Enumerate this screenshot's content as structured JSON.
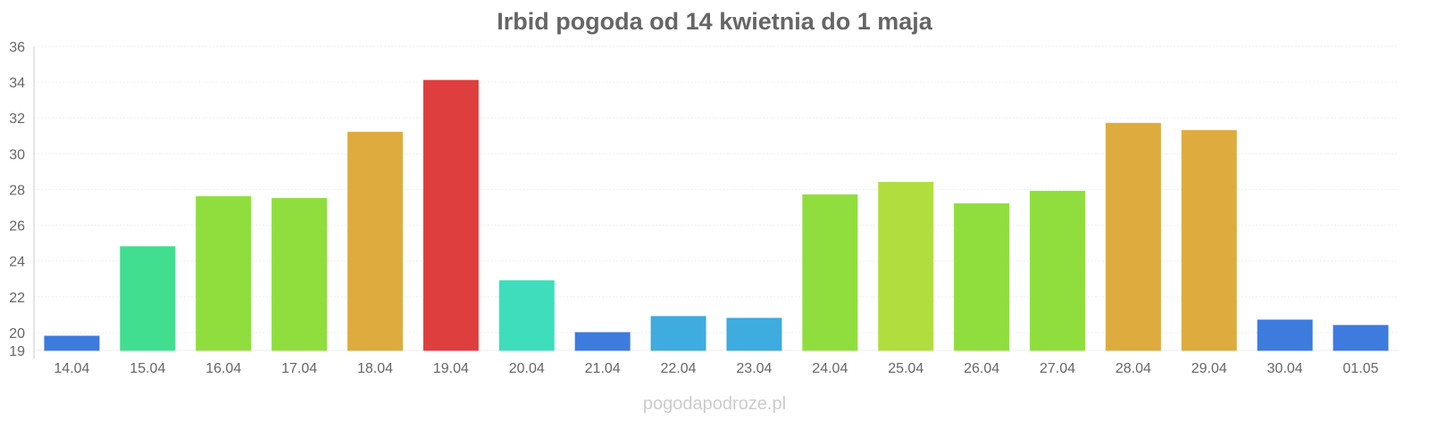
{
  "chart_data": {
    "type": "bar",
    "title": "Irbid pogoda od 14 kwietnia do 1 maja",
    "xlabel": "",
    "ylabel": "",
    "ylim": [
      19,
      36
    ],
    "yticks": [
      19,
      20,
      22,
      24,
      26,
      28,
      30,
      32,
      34,
      36
    ],
    "grid": true,
    "categories": [
      "14.04",
      "15.04",
      "16.04",
      "17.04",
      "18.04",
      "19.04",
      "20.04",
      "21.04",
      "22.04",
      "23.04",
      "24.04",
      "25.04",
      "26.04",
      "27.04",
      "28.04",
      "29.04",
      "30.04",
      "01.05"
    ],
    "values": [
      19.8,
      24.8,
      27.6,
      27.5,
      31.2,
      34.1,
      22.9,
      20.0,
      20.9,
      20.8,
      27.7,
      28.4,
      27.2,
      27.9,
      31.7,
      31.3,
      20.7,
      20.4
    ],
    "colors": [
      "#3474dc",
      "#37dc8a",
      "#8adc34",
      "#8adc34",
      "#dca834",
      "#dc3434",
      "#34dcb8",
      "#3474dc",
      "#34a8dc",
      "#34a8dc",
      "#8adc34",
      "#addc34",
      "#8adc34",
      "#8adc34",
      "#dca834",
      "#dca834",
      "#3474dc",
      "#3474dc"
    ]
  },
  "footer": {
    "credit": "pogodapodroze.pl"
  }
}
